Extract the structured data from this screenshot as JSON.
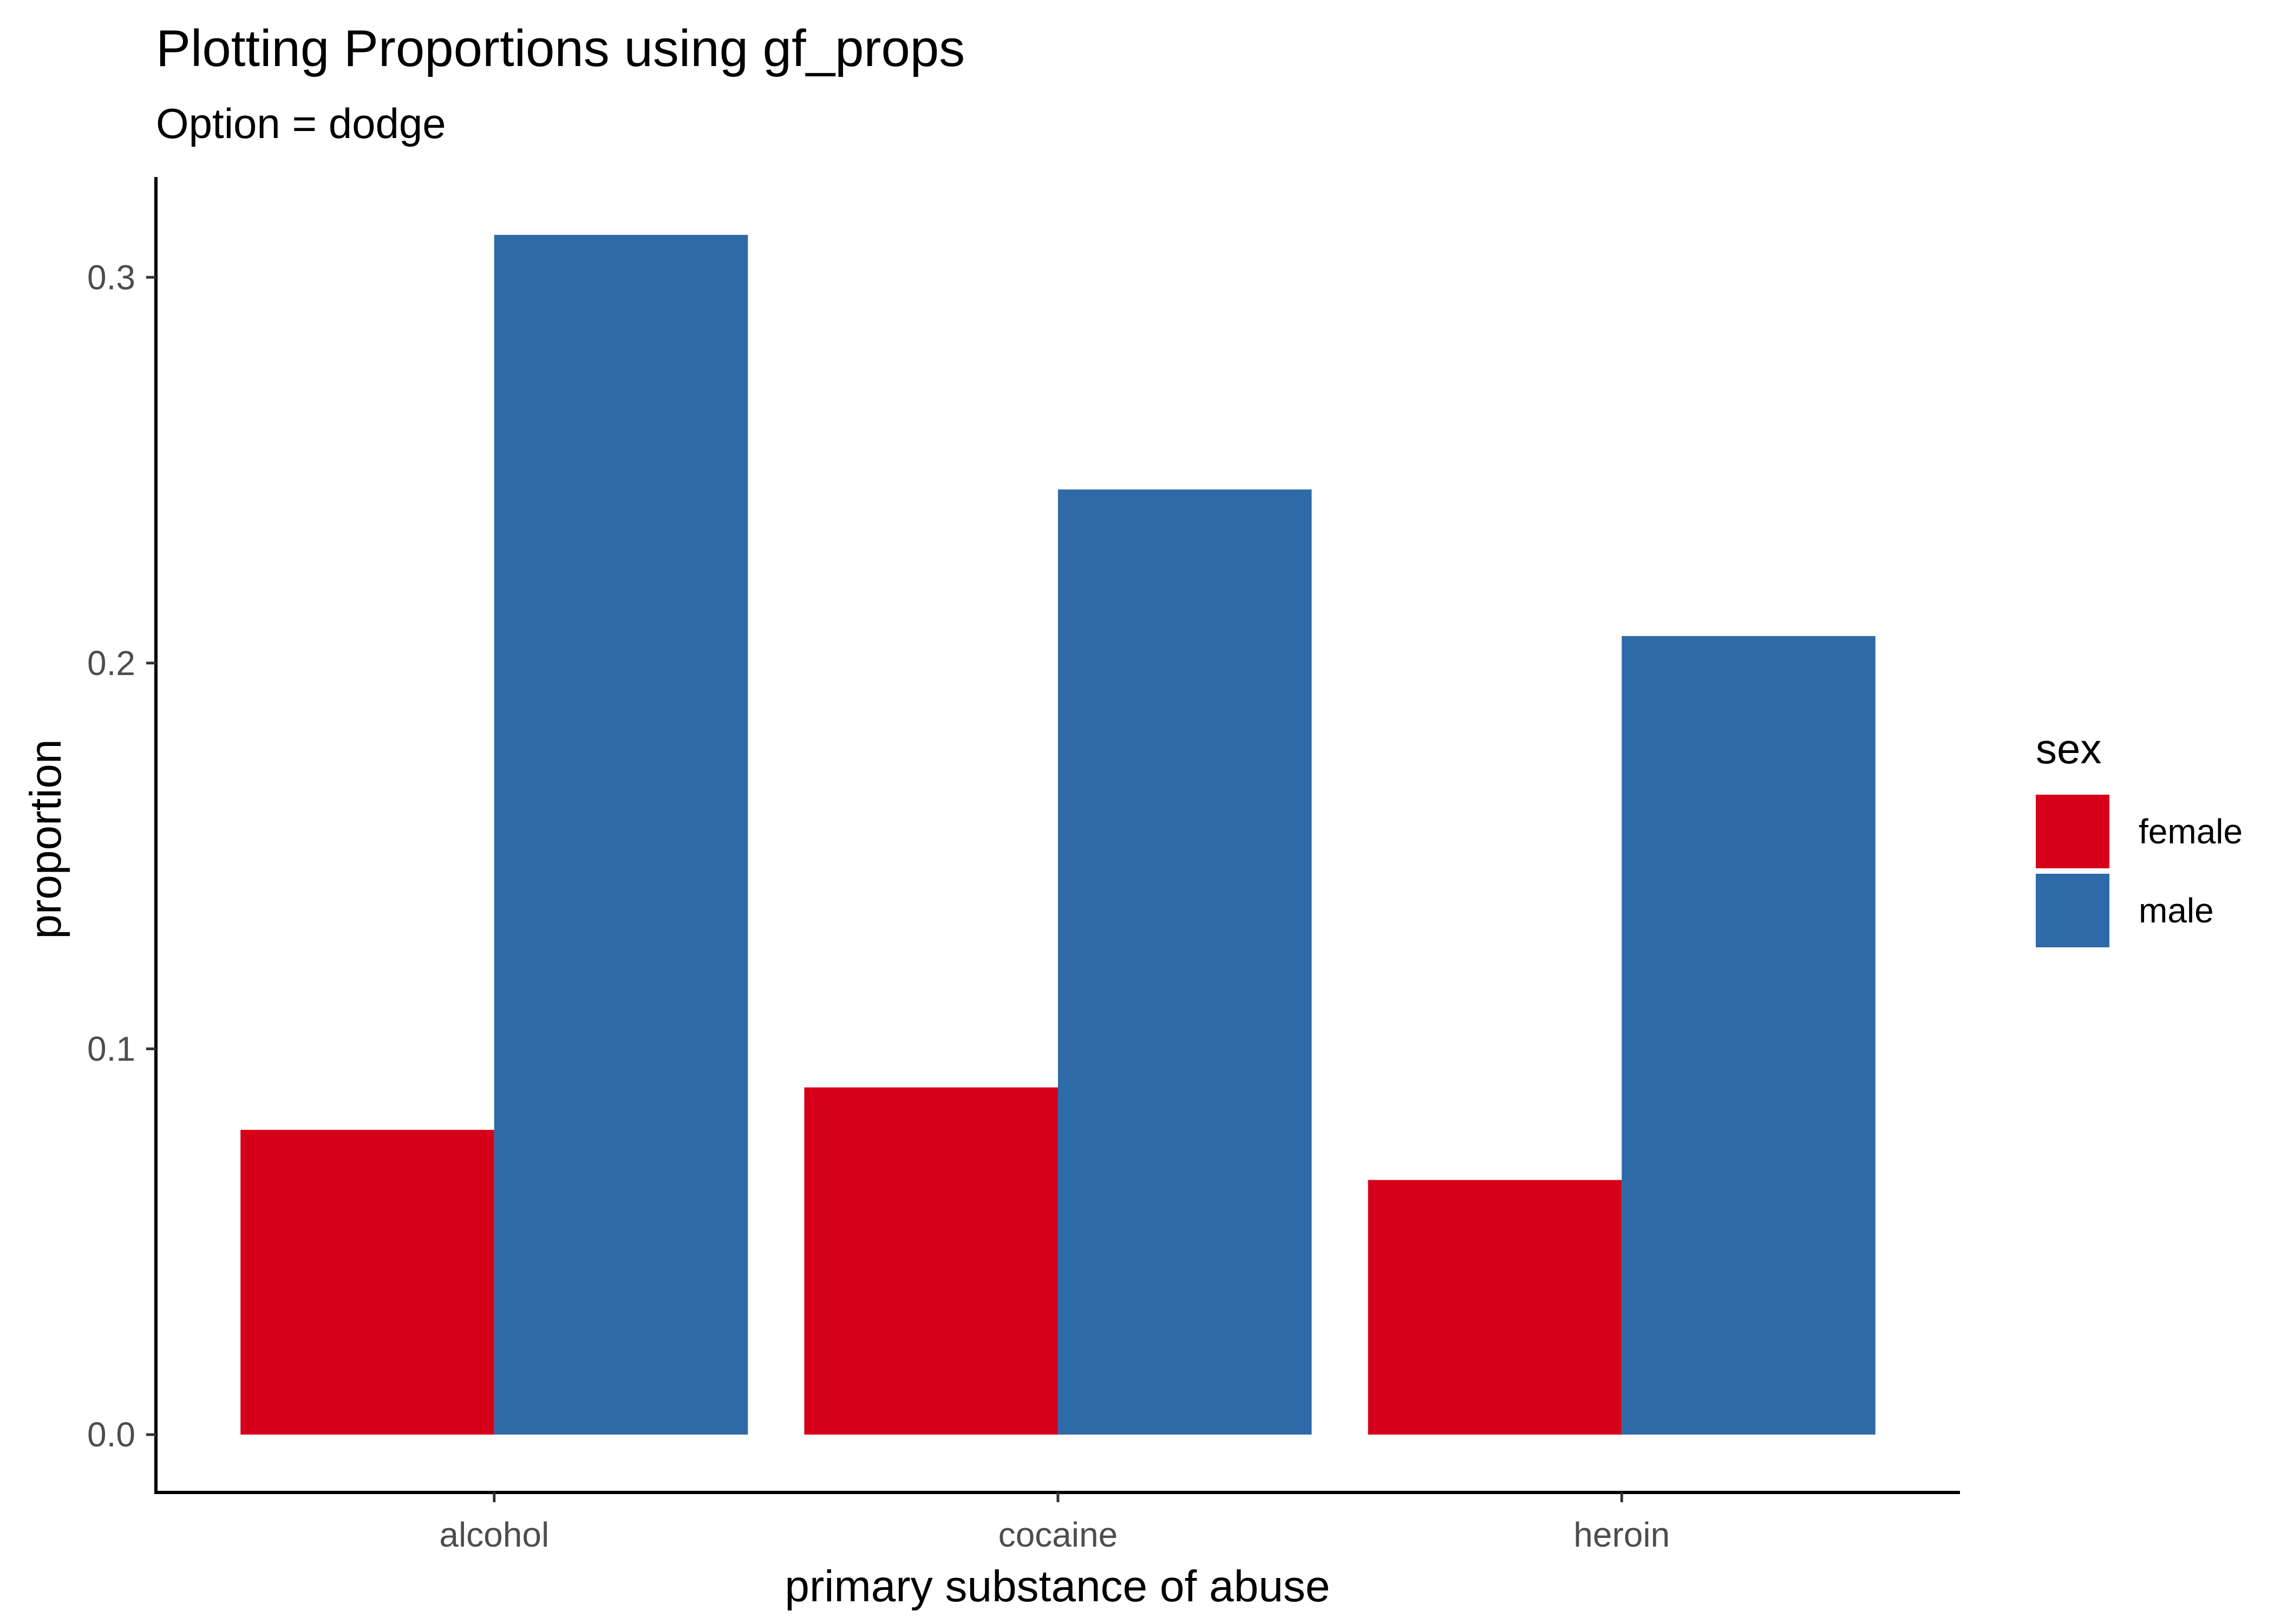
{
  "chart_data": {
    "type": "bar",
    "title": "Plotting Proportions using gf_props",
    "subtitle": "Option = dodge",
    "xlabel": "primary substance of abuse",
    "ylabel": "proportion",
    "categories": [
      "alcohol",
      "cocaine",
      "heroin"
    ],
    "series": [
      {
        "name": "female",
        "color": "#d7001a",
        "values": [
          0.079,
          0.09,
          0.066
        ]
      },
      {
        "name": "male",
        "color": "#2e6aa8",
        "values": [
          0.311,
          0.245,
          0.207
        ]
      }
    ],
    "ylim": [
      -0.015,
      0.326
    ],
    "yticks": [
      0.0,
      0.1,
      0.2,
      0.3
    ],
    "ytick_labels": [
      "0.0",
      "0.1",
      "0.2",
      "0.3"
    ],
    "grid": false,
    "legend": {
      "title": "sex",
      "placement": "right",
      "entries": [
        "female",
        "male"
      ]
    }
  }
}
